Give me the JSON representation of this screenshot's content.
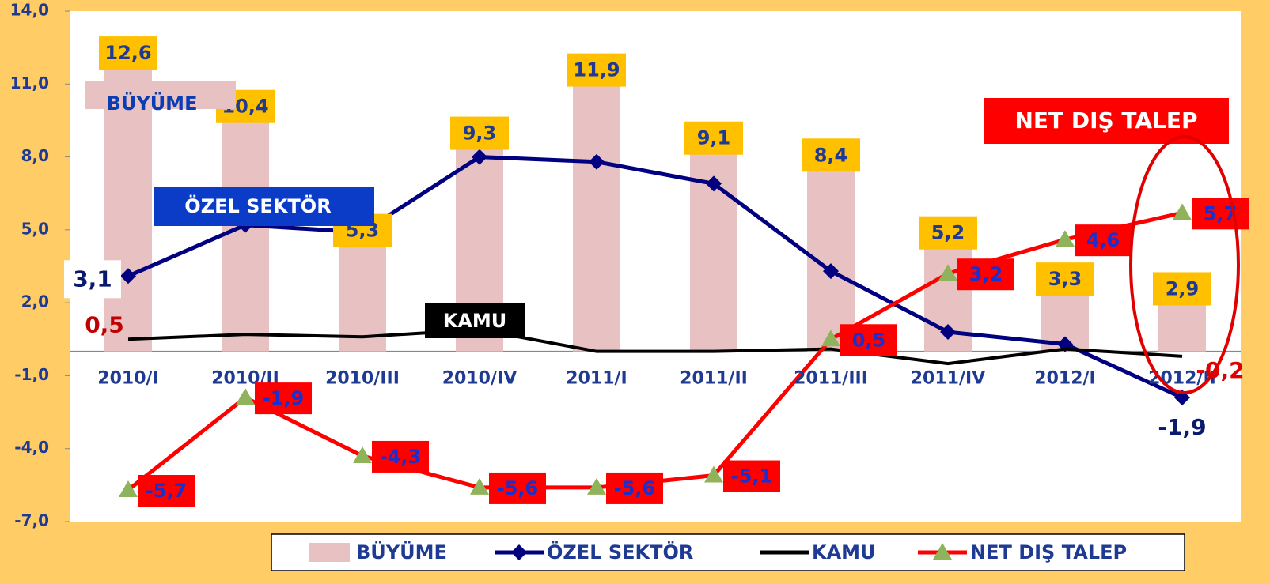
{
  "chart_data": {
    "type": "combo",
    "categories": [
      "2010/I",
      "2010/II",
      "2010/III",
      "2010/IV",
      "2011/I",
      "2011/II",
      "2011/III",
      "2011/IV",
      "2012/I",
      "2012/II"
    ],
    "ylim": [
      -7,
      14
    ],
    "yticks": [
      {
        "value": -7,
        "label": "-7,0"
      },
      {
        "value": -4,
        "label": "-4,0"
      },
      {
        "value": -1,
        "label": "-1,0"
      },
      {
        "value": 2,
        "label": "2,0"
      },
      {
        "value": 5,
        "label": "5,0"
      },
      {
        "value": 8,
        "label": "8,0"
      },
      {
        "value": 11,
        "label": "11,0"
      },
      {
        "value": 14,
        "label": "14,0"
      }
    ],
    "grid": false,
    "legend": "bottom",
    "series": [
      {
        "name": "BÜYÜME",
        "type": "bar",
        "color": "#e8c2c2",
        "values": [
          12.6,
          10.4,
          5.3,
          9.3,
          11.9,
          9.1,
          8.4,
          5.2,
          3.3,
          2.9
        ],
        "value_labels": [
          "12,6",
          "10,4",
          "5,3",
          "9,3",
          "11,9",
          "9,1",
          "8,4",
          "5,2",
          "3,3",
          "2,9"
        ]
      },
      {
        "name": "ÖZEL SEKTÖR",
        "type": "line",
        "marker": "diamond",
        "color": "#000080",
        "values": [
          3.1,
          5.2,
          4.9,
          8.0,
          7.8,
          6.9,
          3.3,
          0.8,
          0.3,
          -1.9
        ],
        "value_labels": [
          "3,1",
          null,
          null,
          null,
          null,
          null,
          null,
          null,
          null,
          "-1,9"
        ]
      },
      {
        "name": "KAMU",
        "type": "line",
        "marker": "none",
        "color": "#000000",
        "values": [
          0.5,
          0.7,
          0.6,
          0.9,
          0.0,
          0.0,
          0.1,
          -0.5,
          0.1,
          -0.2
        ],
        "value_labels": [
          "0,5",
          null,
          null,
          null,
          null,
          null,
          null,
          null,
          null,
          "-0,2"
        ]
      },
      {
        "name": "NET DIŞ TALEP",
        "type": "line",
        "marker": "triangle",
        "color": "#ff0000",
        "values": [
          -5.7,
          -1.9,
          -4.3,
          -5.6,
          -5.6,
          -5.1,
          0.5,
          3.2,
          4.6,
          5.7
        ],
        "value_labels": [
          "-5,7",
          "-1,9",
          "-4,3",
          "-5,6",
          "-5,6",
          "-5,1",
          "0,5",
          "3,2",
          "4,6",
          "5,7"
        ]
      }
    ]
  }
}
